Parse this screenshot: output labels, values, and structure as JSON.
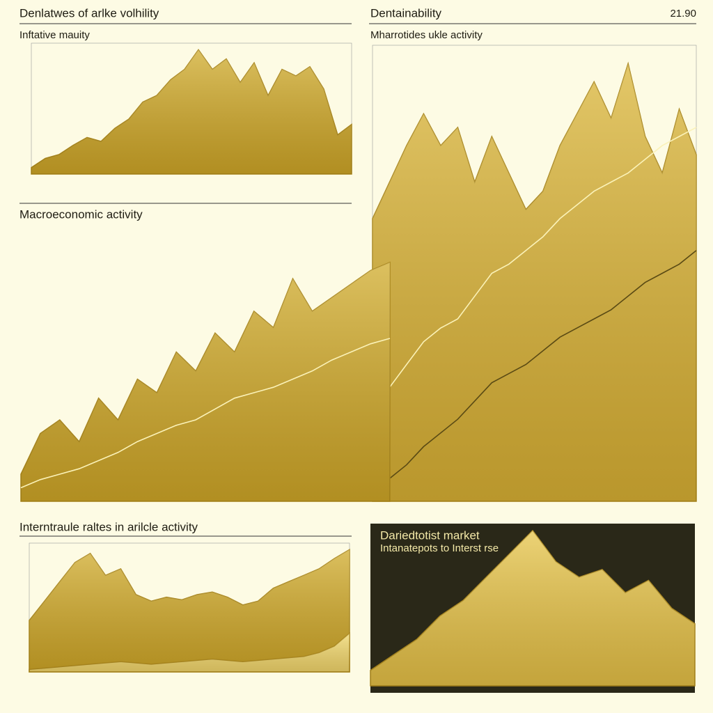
{
  "chart_data": [
    {
      "type": "area",
      "title": "Denlatwes of arlke volhility",
      "subtitle": "Inftative mauity",
      "ylim": [
        0,
        100
      ],
      "series": [
        {
          "style": "area",
          "color": "#c9a227",
          "values": [
            5,
            12,
            15,
            22,
            28,
            25,
            35,
            42,
            55,
            60,
            72,
            80,
            95,
            80,
            88,
            70,
            85,
            60,
            80,
            75,
            82,
            65,
            30,
            38
          ]
        }
      ]
    },
    {
      "type": "area",
      "title": "Dentainability",
      "annotation": "21.90",
      "subtitle": "Mharrotides ukle activity",
      "ylim": [
        0,
        100
      ],
      "series": [
        {
          "style": "area",
          "color": "#d4ad35",
          "values": [
            62,
            70,
            78,
            85,
            78,
            82,
            70,
            80,
            72,
            64,
            68,
            78,
            85,
            92,
            84,
            96,
            80,
            72,
            86,
            76
          ]
        },
        {
          "style": "line",
          "color": "#fbf2b8",
          "values": [
            20,
            25,
            30,
            35,
            38,
            40,
            45,
            50,
            52,
            55,
            58,
            62,
            65,
            68,
            70,
            72,
            75,
            78,
            80,
            82
          ]
        },
        {
          "style": "line",
          "color": "#5a4a14",
          "values": [
            2,
            5,
            8,
            12,
            15,
            18,
            22,
            26,
            28,
            30,
            33,
            36,
            38,
            40,
            42,
            45,
            48,
            50,
            52,
            55
          ]
        }
      ]
    },
    {
      "type": "area",
      "title": "Macroeconomic activity",
      "ylim": [
        0,
        100
      ],
      "series": [
        {
          "style": "area",
          "color": "#c9a227",
          "values": [
            10,
            25,
            30,
            22,
            38,
            30,
            45,
            40,
            55,
            48,
            62,
            55,
            70,
            64,
            82,
            70,
            75,
            80,
            85,
            88
          ]
        },
        {
          "style": "line",
          "color": "#fbf2b8",
          "values": [
            5,
            8,
            10,
            12,
            15,
            18,
            22,
            25,
            28,
            30,
            34,
            38,
            40,
            42,
            45,
            48,
            52,
            55,
            58,
            60
          ]
        }
      ]
    },
    {
      "type": "area",
      "title": "Interntraule raltes in arilcle activity",
      "ylim": [
        0,
        100
      ],
      "series": [
        {
          "style": "area",
          "color": "#c9a227",
          "values": [
            40,
            55,
            70,
            85,
            92,
            75,
            80,
            60,
            55,
            58,
            56,
            60,
            62,
            58,
            52,
            55,
            65,
            70,
            75,
            80,
            88,
            95
          ]
        },
        {
          "style": "area",
          "color": "#f0d774",
          "values": [
            2,
            3,
            4,
            5,
            6,
            7,
            8,
            7,
            6,
            7,
            8,
            9,
            10,
            9,
            8,
            9,
            10,
            11,
            12,
            15,
            20,
            30
          ]
        }
      ]
    },
    {
      "type": "area",
      "title": "Dariedtotist market",
      "subtitle": "Intanatepots to Interst rse",
      "ylim": [
        0,
        100
      ],
      "dark": true,
      "series": [
        {
          "style": "area",
          "color": "#e2bf4a",
          "values": [
            10,
            20,
            30,
            45,
            55,
            70,
            85,
            100,
            80,
            70,
            75,
            60,
            68,
            50,
            40
          ]
        }
      ]
    }
  ]
}
